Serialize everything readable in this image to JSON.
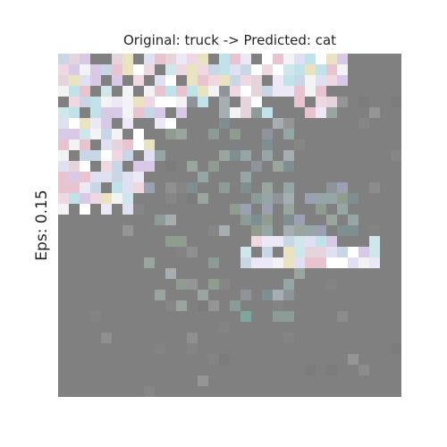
{
  "figure": {
    "title": "Original: truck -> Predicted: cat",
    "ylabel": "Eps: 0.15"
  },
  "image": {
    "grid_size": 32,
    "background_color": "#808080",
    "content": "low-resolution adversarial example of a truck photo, mostly gray with pastel noise pixels in the upper-left and a bright horizontal streak lower right"
  }
}
